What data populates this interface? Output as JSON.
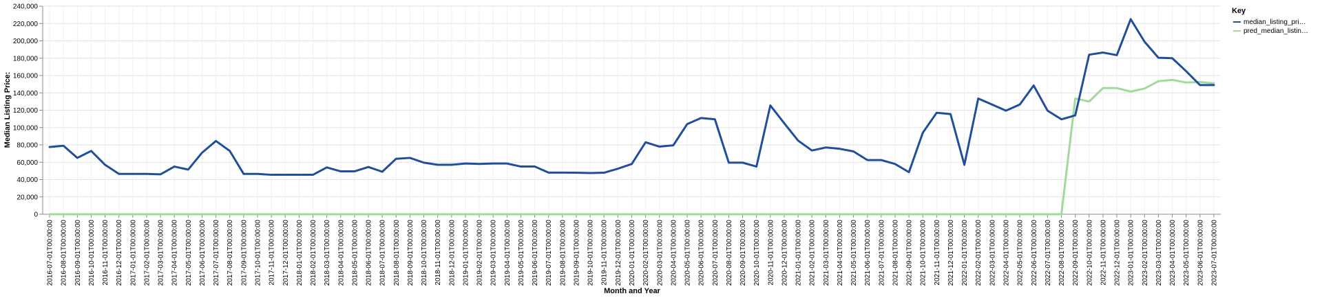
{
  "chart_data": {
    "type": "line",
    "xlabel": "Month and Year",
    "ylabel": "Median Listing Price:",
    "ylim": [
      0,
      240000
    ],
    "yticks": [
      "0",
      "20,000",
      "40,000",
      "60,000",
      "80,000",
      "100,000",
      "120,000",
      "140,000",
      "160,000",
      "180,000",
      "200,000",
      "220,000",
      "240,000"
    ],
    "grid": true,
    "legend_title": "Key",
    "legend_position": "top-right",
    "x": [
      "2016-07-01T00:00:00",
      "2016-08-01T00:00:00",
      "2016-09-01T00:00:00",
      "2016-10-01T00:00:00",
      "2016-11-01T00:00:00",
      "2016-12-01T00:00:00",
      "2017-01-01T00:00:00",
      "2017-02-01T00:00:00",
      "2017-03-01T00:00:00",
      "2017-04-01T00:00:00",
      "2017-05-01T00:00:00",
      "2017-06-01T00:00:00",
      "2017-07-01T00:00:00",
      "2017-08-01T00:00:00",
      "2017-09-01T00:00:00",
      "2017-10-01T00:00:00",
      "2017-11-01T00:00:00",
      "2017-12-01T00:00:00",
      "2018-01-01T00:00:00",
      "2018-02-01T00:00:00",
      "2018-03-01T00:00:00",
      "2018-04-01T00:00:00",
      "2018-05-01T00:00:00",
      "2018-06-01T00:00:00",
      "2018-07-01T00:00:00",
      "2018-08-01T00:00:00",
      "2018-09-01T00:00:00",
      "2018-10-01T00:00:00",
      "2018-11-01T00:00:00",
      "2018-12-01T00:00:00",
      "2019-01-01T00:00:00",
      "2019-02-01T00:00:00",
      "2019-03-01T00:00:00",
      "2019-04-01T00:00:00",
      "2019-05-01T00:00:00",
      "2019-06-01T00:00:00",
      "2019-07-01T00:00:00",
      "2019-08-01T00:00:00",
      "2019-09-01T00:00:00",
      "2019-10-01T00:00:00",
      "2019-11-01T00:00:00",
      "2019-12-01T00:00:00",
      "2020-01-01T00:00:00",
      "2020-02-01T00:00:00",
      "2020-03-01T00:00:00",
      "2020-04-01T00:00:00",
      "2020-05-01T00:00:00",
      "2020-06-01T00:00:00",
      "2020-07-01T00:00:00",
      "2020-08-01T00:00:00",
      "2020-09-01T00:00:00",
      "2020-10-01T00:00:00",
      "2020-11-01T00:00:00",
      "2020-12-01T00:00:00",
      "2021-01-01T00:00:00",
      "2021-02-01T00:00:00",
      "2021-03-01T00:00:00",
      "2021-04-01T00:00:00",
      "2021-05-01T00:00:00",
      "2021-06-01T00:00:00",
      "2021-07-01T00:00:00",
      "2021-08-01T00:00:00",
      "2021-09-01T00:00:00",
      "2021-10-01T00:00:00",
      "2021-11-01T00:00:00",
      "2021-12-01T00:00:00",
      "2022-01-01T00:00:00",
      "2022-02-01T00:00:00",
      "2022-03-01T00:00:00",
      "2022-04-01T00:00:00",
      "2022-05-01T00:00:00",
      "2022-06-01T00:00:00",
      "2022-07-01T00:00:00",
      "2022-08-01T00:00:00",
      "2022-09-01T00:00:00",
      "2022-10-01T00:00:00",
      "2022-11-01T00:00:00",
      "2022-12-01T00:00:00",
      "2023-01-01T00:00:00",
      "2023-02-01T00:00:00",
      "2023-03-01T00:00:00",
      "2023-04-01T00:00:00",
      "2023-05-01T00:00:00",
      "2023-06-01T00:00:00",
      "2023-07-01T00:00:00"
    ],
    "series": [
      {
        "name": "median_listing_pri…",
        "color": "#1f4e9a",
        "values": [
          77500,
          79000,
          65000,
          73000,
          57000,
          46500,
          46500,
          46500,
          46000,
          55000,
          51500,
          71000,
          84500,
          73000,
          46500,
          46500,
          45500,
          45500,
          45500,
          45500,
          54000,
          49500,
          49500,
          54500,
          49000,
          64000,
          65000,
          59500,
          57000,
          57000,
          58500,
          58000,
          58500,
          58500,
          55000,
          55000,
          48000,
          48000,
          47900,
          47500,
          47900,
          52500,
          58000,
          83000,
          78000,
          79500,
          104000,
          111000,
          109500,
          59500,
          59500,
          55000,
          125500,
          105000,
          85000,
          73500,
          77000,
          75500,
          72500,
          62500,
          62500,
          58000,
          48500,
          94000,
          117000,
          115500,
          57000,
          133500,
          126500,
          119500,
          126500,
          148500,
          119500,
          109500,
          114000,
          184000,
          186500,
          183500,
          225000,
          199000,
          180500,
          180000,
          165000,
          149000,
          149000
        ]
      },
      {
        "name": "pred_median_listin…",
        "color": "#a1d99b",
        "values": [
          0,
          0,
          0,
          0,
          0,
          0,
          0,
          0,
          0,
          0,
          0,
          0,
          0,
          0,
          0,
          0,
          0,
          0,
          0,
          0,
          0,
          0,
          0,
          0,
          0,
          0,
          0,
          0,
          0,
          0,
          0,
          0,
          0,
          0,
          0,
          0,
          0,
          0,
          0,
          0,
          0,
          0,
          0,
          0,
          0,
          0,
          0,
          0,
          0,
          0,
          0,
          0,
          0,
          0,
          0,
          0,
          0,
          0,
          0,
          0,
          0,
          0,
          0,
          0,
          0,
          0,
          0,
          0,
          0,
          0,
          0,
          0,
          0,
          0,
          133500,
          130000,
          145500,
          145500,
          141500,
          145000,
          153500,
          155000,
          152000,
          152500,
          151000
        ]
      }
    ]
  }
}
